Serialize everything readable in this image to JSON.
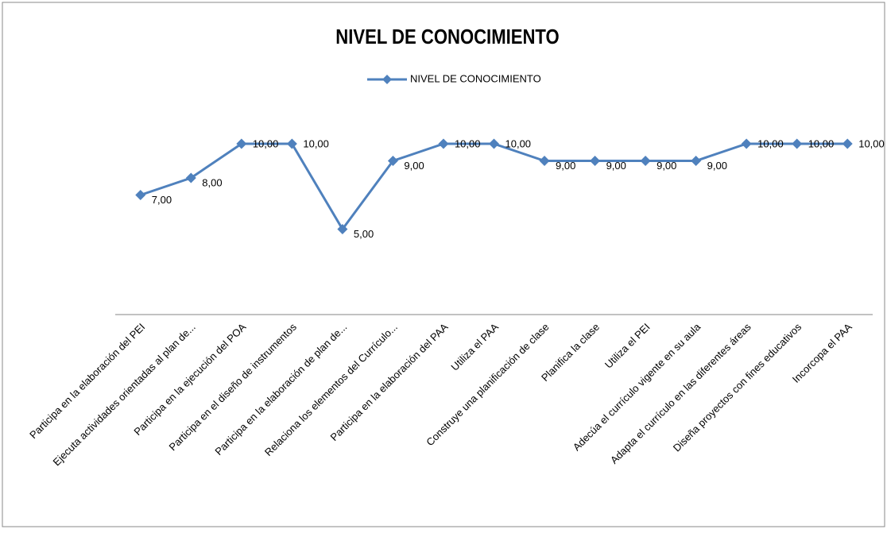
{
  "chart_data": {
    "type": "line",
    "title": "NIVEL DE CONOCIMIENTO",
    "categories": [
      "Participa en la elaboración del PEI",
      "Ejecuta actividades  orientadas al plan de...",
      "Participa en la ejecución del POA",
      "Participa en el diseño de instrumentos",
      "Participa en la elaboración de plan de...",
      "Relaciona los elementos  del Currículo...",
      "Participa en la elaboración del PAA",
      "Utiliza el PAA",
      "Construye una planificación de clase",
      "Planifica la clase",
      "Utiliza el PEI",
      "Adecúa el currículo vigente en su aula",
      "Adapta el currículo en las diferentes áreas",
      "Diseña proyectos con fines educativos",
      "Incorcopa el PAA"
    ],
    "series": [
      {
        "name": "NIVEL DE CONOCIMIENTO",
        "color": "#4f81bd",
        "values": [
          7,
          8,
          10,
          10,
          5,
          9,
          10,
          10,
          9,
          9,
          9,
          9,
          10,
          10,
          10
        ],
        "value_labels": [
          "7,00",
          "8,00",
          "10,00",
          "10,00",
          "5,00",
          "9,00",
          "10,00",
          "10,00",
          "9,00",
          "9,00",
          "9,00",
          "9,00",
          "10,00",
          "10,00",
          "10,00"
        ]
      }
    ],
    "ylim": [
      0,
      12
    ]
  }
}
